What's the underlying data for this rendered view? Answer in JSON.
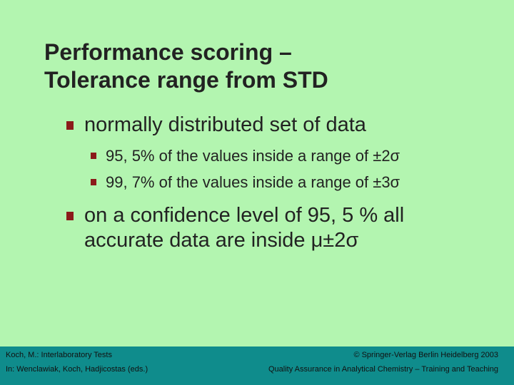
{
  "slide": {
    "title_line1": "Performance scoring –",
    "title_line2": "Tolerance range from STD",
    "bullets": [
      {
        "text": "normally distributed set of data"
      },
      {
        "text": "95, 5% of the values inside a range of ±2σ"
      },
      {
        "text": "99, 7% of the values inside a range of ±3σ"
      },
      {
        "text_line1": "on a confidence level of 95, 5 % all",
        "text_line2": "accurate data are inside μ±2σ"
      }
    ]
  },
  "footer": {
    "left_line1": "Koch, M.: Interlaboratory Tests",
    "left_line2": "In: Wenclawiak, Koch, Hadjicostas (eds.)",
    "right_line1": "© Springer-Verlag Berlin Heidelberg 2003",
    "right_line2": "Quality Assurance in Analytical Chemistry – Training and Teaching"
  },
  "colors": {
    "background": "#b3f5b0",
    "bullet_marker": "#8b1a1a",
    "footer_bar": "#0f8c8c"
  }
}
